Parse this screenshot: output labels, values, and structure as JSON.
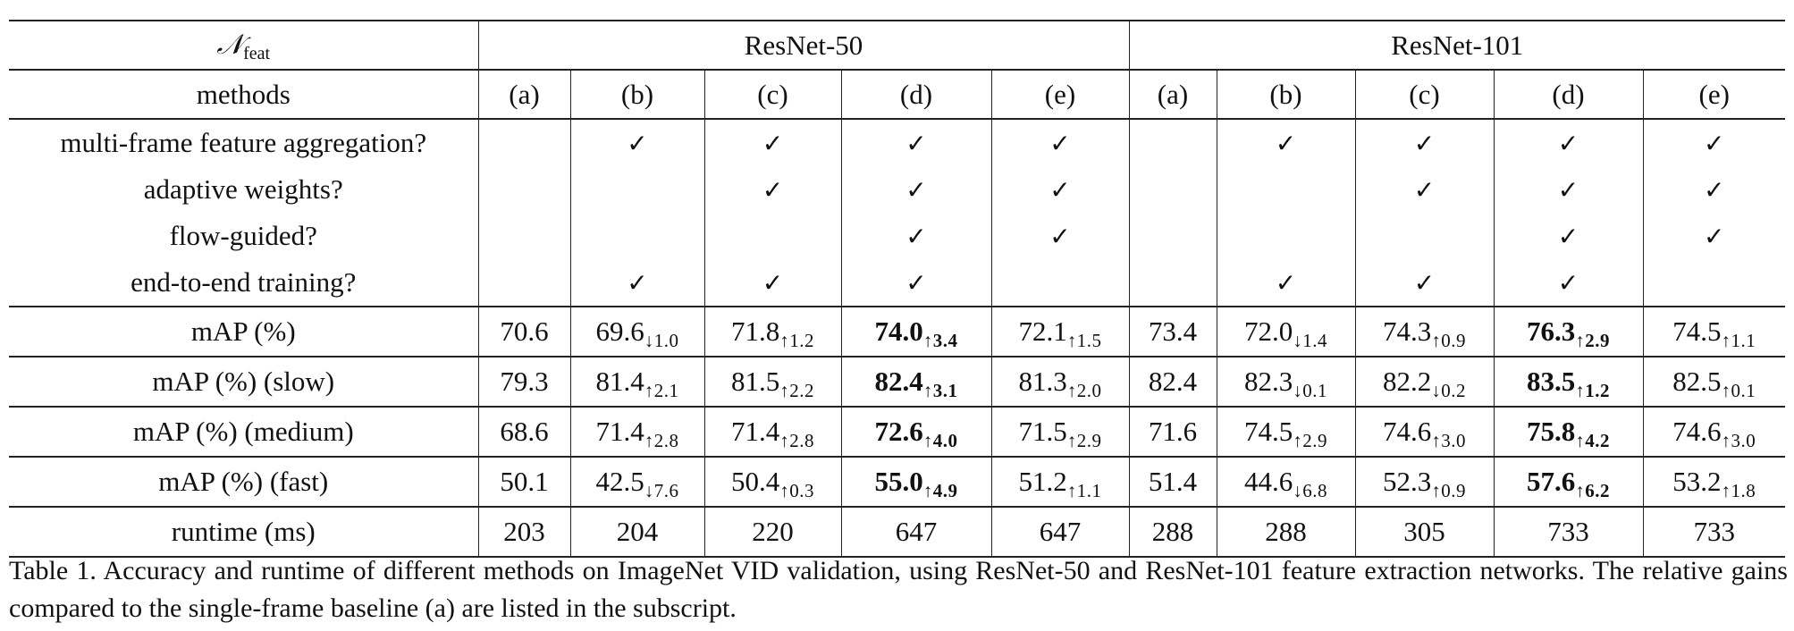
{
  "table": {
    "corner_label_symbol": "𝒩",
    "corner_label_sub": "feat",
    "groups": [
      "ResNet-50",
      "ResNet-101"
    ],
    "methods_label": "methods",
    "methods": [
      "(a)",
      "(b)",
      "(c)",
      "(d)",
      "(e)",
      "(a)",
      "(b)",
      "(c)",
      "(d)",
      "(e)"
    ],
    "check_mark": "✓",
    "feature_rows": [
      {
        "label": "multi-frame feature aggregation?",
        "checks": [
          false,
          true,
          true,
          true,
          true,
          false,
          true,
          true,
          true,
          true
        ]
      },
      {
        "label": "adaptive weights?",
        "checks": [
          false,
          false,
          true,
          true,
          true,
          false,
          false,
          true,
          true,
          true
        ]
      },
      {
        "label": "flow-guided?",
        "checks": [
          false,
          false,
          false,
          true,
          true,
          false,
          false,
          false,
          true,
          true
        ]
      },
      {
        "label": "end-to-end training?",
        "checks": [
          false,
          true,
          true,
          true,
          false,
          false,
          true,
          true,
          true,
          false
        ]
      }
    ],
    "metric_rows": [
      {
        "label": "mAP (%)",
        "cells": [
          {
            "v": "70.6",
            "d": "",
            "b": false
          },
          {
            "v": "69.6",
            "d": "↓1.0",
            "b": false
          },
          {
            "v": "71.8",
            "d": "↑1.2",
            "b": false
          },
          {
            "v": "74.0",
            "d": "↑3.4",
            "b": true
          },
          {
            "v": "72.1",
            "d": "↑1.5",
            "b": false
          },
          {
            "v": "73.4",
            "d": "",
            "b": false
          },
          {
            "v": "72.0",
            "d": "↓1.4",
            "b": false
          },
          {
            "v": "74.3",
            "d": "↑0.9",
            "b": false
          },
          {
            "v": "76.3",
            "d": "↑2.9",
            "b": true
          },
          {
            "v": "74.5",
            "d": "↑1.1",
            "b": false
          }
        ]
      },
      {
        "label": "mAP (%) (slow)",
        "cells": [
          {
            "v": "79.3",
            "d": "",
            "b": false
          },
          {
            "v": "81.4",
            "d": "↑2.1",
            "b": false
          },
          {
            "v": "81.5",
            "d": "↑2.2",
            "b": false
          },
          {
            "v": "82.4",
            "d": "↑3.1",
            "b": true
          },
          {
            "v": "81.3",
            "d": "↑2.0",
            "b": false
          },
          {
            "v": "82.4",
            "d": "",
            "b": false
          },
          {
            "v": "82.3",
            "d": "↓0.1",
            "b": false
          },
          {
            "v": "82.2",
            "d": "↓0.2",
            "b": false
          },
          {
            "v": "83.5",
            "d": "↑1.2",
            "b": true
          },
          {
            "v": "82.5",
            "d": "↑0.1",
            "b": false
          }
        ]
      },
      {
        "label": "mAP (%) (medium)",
        "cells": [
          {
            "v": "68.6",
            "d": "",
            "b": false
          },
          {
            "v": "71.4",
            "d": "↑2.8",
            "b": false
          },
          {
            "v": "71.4",
            "d": "↑2.8",
            "b": false
          },
          {
            "v": "72.6",
            "d": "↑4.0",
            "b": true
          },
          {
            "v": "71.5",
            "d": "↑2.9",
            "b": false
          },
          {
            "v": "71.6",
            "d": "",
            "b": false
          },
          {
            "v": "74.5",
            "d": "↑2.9",
            "b": false
          },
          {
            "v": "74.6",
            "d": "↑3.0",
            "b": false
          },
          {
            "v": "75.8",
            "d": "↑4.2",
            "b": true
          },
          {
            "v": "74.6",
            "d": "↑3.0",
            "b": false
          }
        ]
      },
      {
        "label": "mAP (%) (fast)",
        "cells": [
          {
            "v": "50.1",
            "d": "",
            "b": false
          },
          {
            "v": "42.5",
            "d": "↓7.6",
            "b": false
          },
          {
            "v": "50.4",
            "d": "↑0.3",
            "b": false
          },
          {
            "v": "55.0",
            "d": "↑4.9",
            "b": true
          },
          {
            "v": "51.2",
            "d": "↑1.1",
            "b": false
          },
          {
            "v": "51.4",
            "d": "",
            "b": false
          },
          {
            "v": "44.6",
            "d": "↓6.8",
            "b": false
          },
          {
            "v": "52.3",
            "d": "↑0.9",
            "b": false
          },
          {
            "v": "57.6",
            "d": "↑6.2",
            "b": true
          },
          {
            "v": "53.2",
            "d": "↑1.8",
            "b": false
          }
        ]
      },
      {
        "label": "runtime (ms)",
        "cells": [
          {
            "v": "203",
            "d": "",
            "b": false
          },
          {
            "v": "204",
            "d": "",
            "b": false
          },
          {
            "v": "220",
            "d": "",
            "b": false
          },
          {
            "v": "647",
            "d": "",
            "b": false
          },
          {
            "v": "647",
            "d": "",
            "b": false
          },
          {
            "v": "288",
            "d": "",
            "b": false
          },
          {
            "v": "288",
            "d": "",
            "b": false
          },
          {
            "v": "305",
            "d": "",
            "b": false
          },
          {
            "v": "733",
            "d": "",
            "b": false
          },
          {
            "v": "733",
            "d": "",
            "b": false
          }
        ]
      }
    ]
  },
  "caption": "Table 1. Accuracy and runtime of different methods on ImageNet VID validation, using ResNet-50 and ResNet-101 feature extraction networks. The relative gains compared to the single-frame baseline (a) are listed in the subscript."
}
